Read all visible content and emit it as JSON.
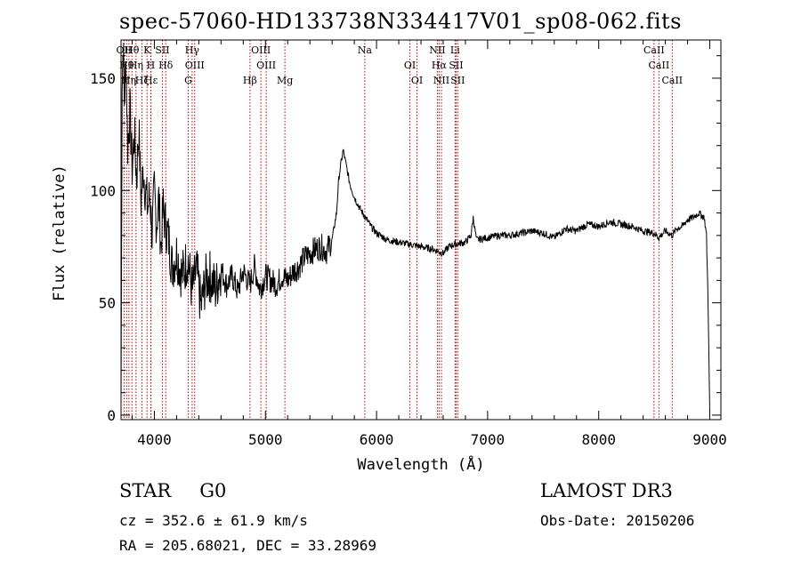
{
  "header": {
    "title": "spec-57060-HD133738N334417V01_sp08-062.fits"
  },
  "info": {
    "object_class": "STAR",
    "subclass": "G0",
    "survey": "LAMOST DR3",
    "cz": "cz = 352.6 ± 61.9 km/s",
    "obs_date": "Obs-Date: 20150206",
    "coords": "RA = 205.68021, DEC =  33.28969"
  },
  "chart_data": {
    "type": "line",
    "title": "spec-57060-HD133738N334417V01_sp08-062.fits",
    "xlabel": "Wavelength (Å)",
    "ylabel": "Flux (relative)",
    "xlim": [
      3700,
      9100
    ],
    "ylim": [
      -2,
      167
    ],
    "xticks": [
      4000,
      5000,
      6000,
      7000,
      8000,
      9000
    ],
    "yticks": [
      0,
      50,
      100,
      150
    ],
    "grid": false,
    "series": [
      {
        "name": "flux",
        "color": "#000000",
        "x": [
          3700,
          3710,
          3720,
          3730,
          3745,
          3760,
          3780,
          3800,
          3820,
          3840,
          3860,
          3880,
          3900,
          3920,
          3940,
          3960,
          3980,
          4000,
          4020,
          4040,
          4060,
          4080,
          4100,
          4130,
          4160,
          4200,
          4250,
          4300,
          4340,
          4380,
          4420,
          4460,
          4500,
          4550,
          4600,
          4650,
          4700,
          4750,
          4800,
          4860,
          4900,
          4950,
          5000,
          5050,
          5100,
          5150,
          5200,
          5250,
          5300,
          5350,
          5400,
          5450,
          5500,
          5550,
          5600,
          5640,
          5660,
          5680,
          5700,
          5720,
          5740,
          5760,
          5800,
          5850,
          5900,
          5950,
          6000,
          6100,
          6200,
          6300,
          6400,
          6500,
          6550,
          6600,
          6650,
          6700,
          6800,
          6850,
          6870,
          6900,
          7000,
          7100,
          7200,
          7300,
          7400,
          7500,
          7600,
          7700,
          7800,
          7900,
          8000,
          8100,
          8200,
          8300,
          8400,
          8500,
          8542,
          8600,
          8662,
          8700,
          8750,
          8800,
          8850,
          8900,
          8950,
          8970,
          8985,
          8995,
          9000
        ],
        "y": [
          5,
          150,
          165,
          140,
          158,
          120,
          135,
          110,
          125,
          105,
          128,
          95,
          110,
          100,
          92,
          98,
          80,
          100,
          85,
          96,
          75,
          92,
          85,
          78,
          66,
          72,
          62,
          70,
          55,
          65,
          48,
          60,
          62,
          56,
          65,
          58,
          62,
          55,
          64,
          58,
          66,
          56,
          62,
          60,
          58,
          62,
          60,
          64,
          66,
          70,
          72,
          74,
          75,
          73,
          78,
          90,
          105,
          112,
          118,
          113,
          108,
          103,
          97,
          92,
          88,
          84,
          81,
          78,
          77,
          76,
          75,
          74,
          73,
          72,
          75,
          76,
          77,
          80,
          88,
          78,
          79,
          80,
          80,
          81,
          82,
          81,
          79,
          83,
          82,
          85,
          84,
          86,
          85,
          84,
          82,
          81,
          79,
          82,
          80,
          83,
          84,
          87,
          88,
          90,
          88,
          80,
          50,
          15,
          1
        ]
      }
    ],
    "line_markers": [
      {
        "x": 3727,
        "label": "OII"
      },
      {
        "x": 3750,
        "label": "Hθ"
      },
      {
        "x": 3771,
        "label": "Hη"
      },
      {
        "x": 3798,
        "label": "Hθ"
      },
      {
        "x": 3835,
        "label": "Hη"
      },
      {
        "x": 3889,
        "label": "Hζ"
      },
      {
        "x": 3934,
        "label": "K"
      },
      {
        "x": 3968,
        "label": "H"
      },
      {
        "x": 3970,
        "label": "Hε"
      },
      {
        "x": 4072,
        "label": "SII"
      },
      {
        "x": 4102,
        "label": "Hδ"
      },
      {
        "x": 4305,
        "label": "G"
      },
      {
        "x": 4340,
        "label": "Hγ"
      },
      {
        "x": 4363,
        "label": "OIII"
      },
      {
        "x": 4861,
        "label": "Hβ"
      },
      {
        "x": 4959,
        "label": "OIII"
      },
      {
        "x": 5007,
        "label": "OIII"
      },
      {
        "x": 5175,
        "label": "Mg"
      },
      {
        "x": 5894,
        "label": "Na"
      },
      {
        "x": 6300,
        "label": "OI"
      },
      {
        "x": 6364,
        "label": "OI"
      },
      {
        "x": 6548,
        "label": "NII"
      },
      {
        "x": 6563,
        "label": "Hα"
      },
      {
        "x": 6584,
        "label": "NII"
      },
      {
        "x": 6707,
        "label": "Li"
      },
      {
        "x": 6716,
        "label": "SII"
      },
      {
        "x": 6731,
        "label": "SII"
      },
      {
        "x": 8498,
        "label": "CaII"
      },
      {
        "x": 8542,
        "label": "CaII"
      },
      {
        "x": 8662,
        "label": "CaII"
      }
    ]
  }
}
